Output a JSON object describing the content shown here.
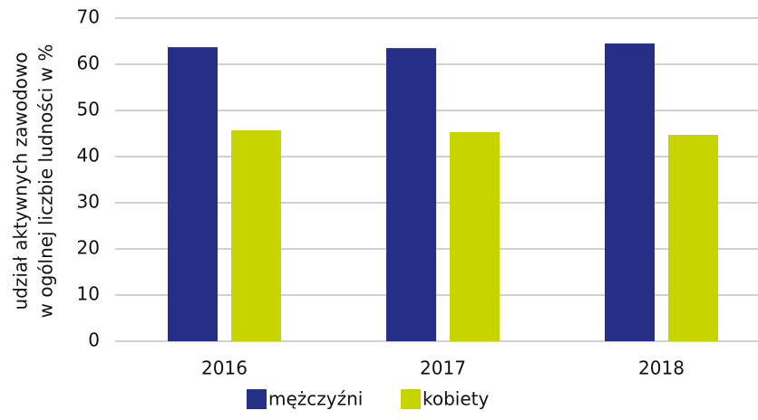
{
  "chart_data": {
    "type": "bar",
    "ylabel": [
      "udział aktywnych zawodowo",
      "w ogólnej liczbie ludności w %"
    ],
    "categories": [
      "2016",
      "2017",
      "2018"
    ],
    "series": [
      {
        "name": "mężczyźni",
        "color": "#262f87",
        "values": [
          63.7,
          63.5,
          64.5
        ]
      },
      {
        "name": "kobiety",
        "color": "#c8d400",
        "values": [
          45.7,
          45.3,
          44.7
        ]
      }
    ],
    "ylim": [
      0,
      70
    ],
    "yticks": [
      0,
      10,
      20,
      30,
      40,
      50,
      60,
      70
    ],
    "grid": true,
    "legend": "bottom"
  }
}
